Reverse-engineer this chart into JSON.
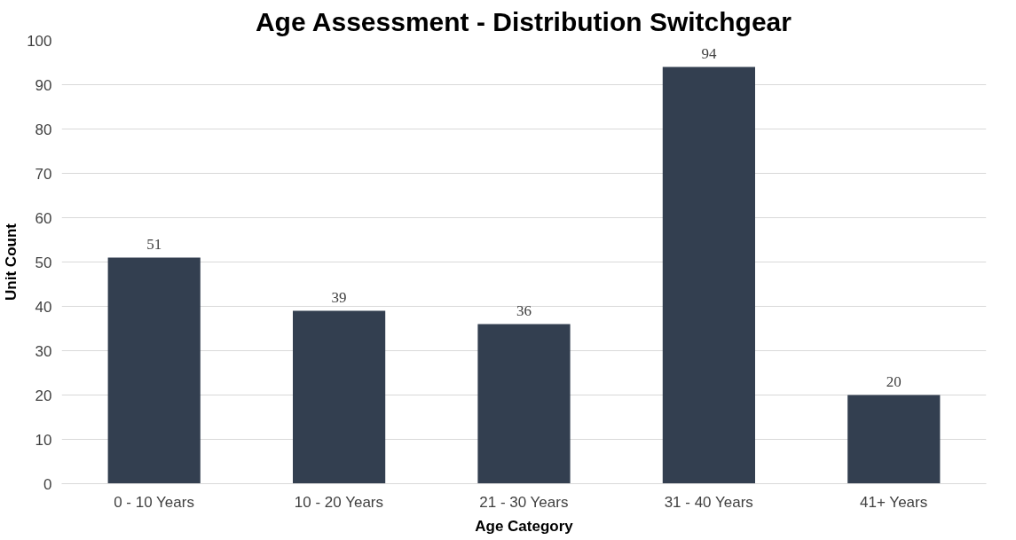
{
  "chart_data": {
    "type": "bar",
    "title": "Age Assessment - Distribution Switchgear",
    "xlabel": "Age Category",
    "ylabel": "Unit Count",
    "categories": [
      "0 - 10 Years",
      "10 - 20 Years",
      "21 - 30 Years",
      "31 - 40 Years",
      "41+ Years"
    ],
    "values": [
      51,
      39,
      36,
      94,
      20
    ],
    "color": "#333f50",
    "ylim": [
      0,
      100
    ],
    "yticks": [
      0,
      10,
      20,
      30,
      40,
      50,
      60,
      70,
      80,
      90,
      100
    ],
    "grid": "y",
    "data_labels": true
  }
}
